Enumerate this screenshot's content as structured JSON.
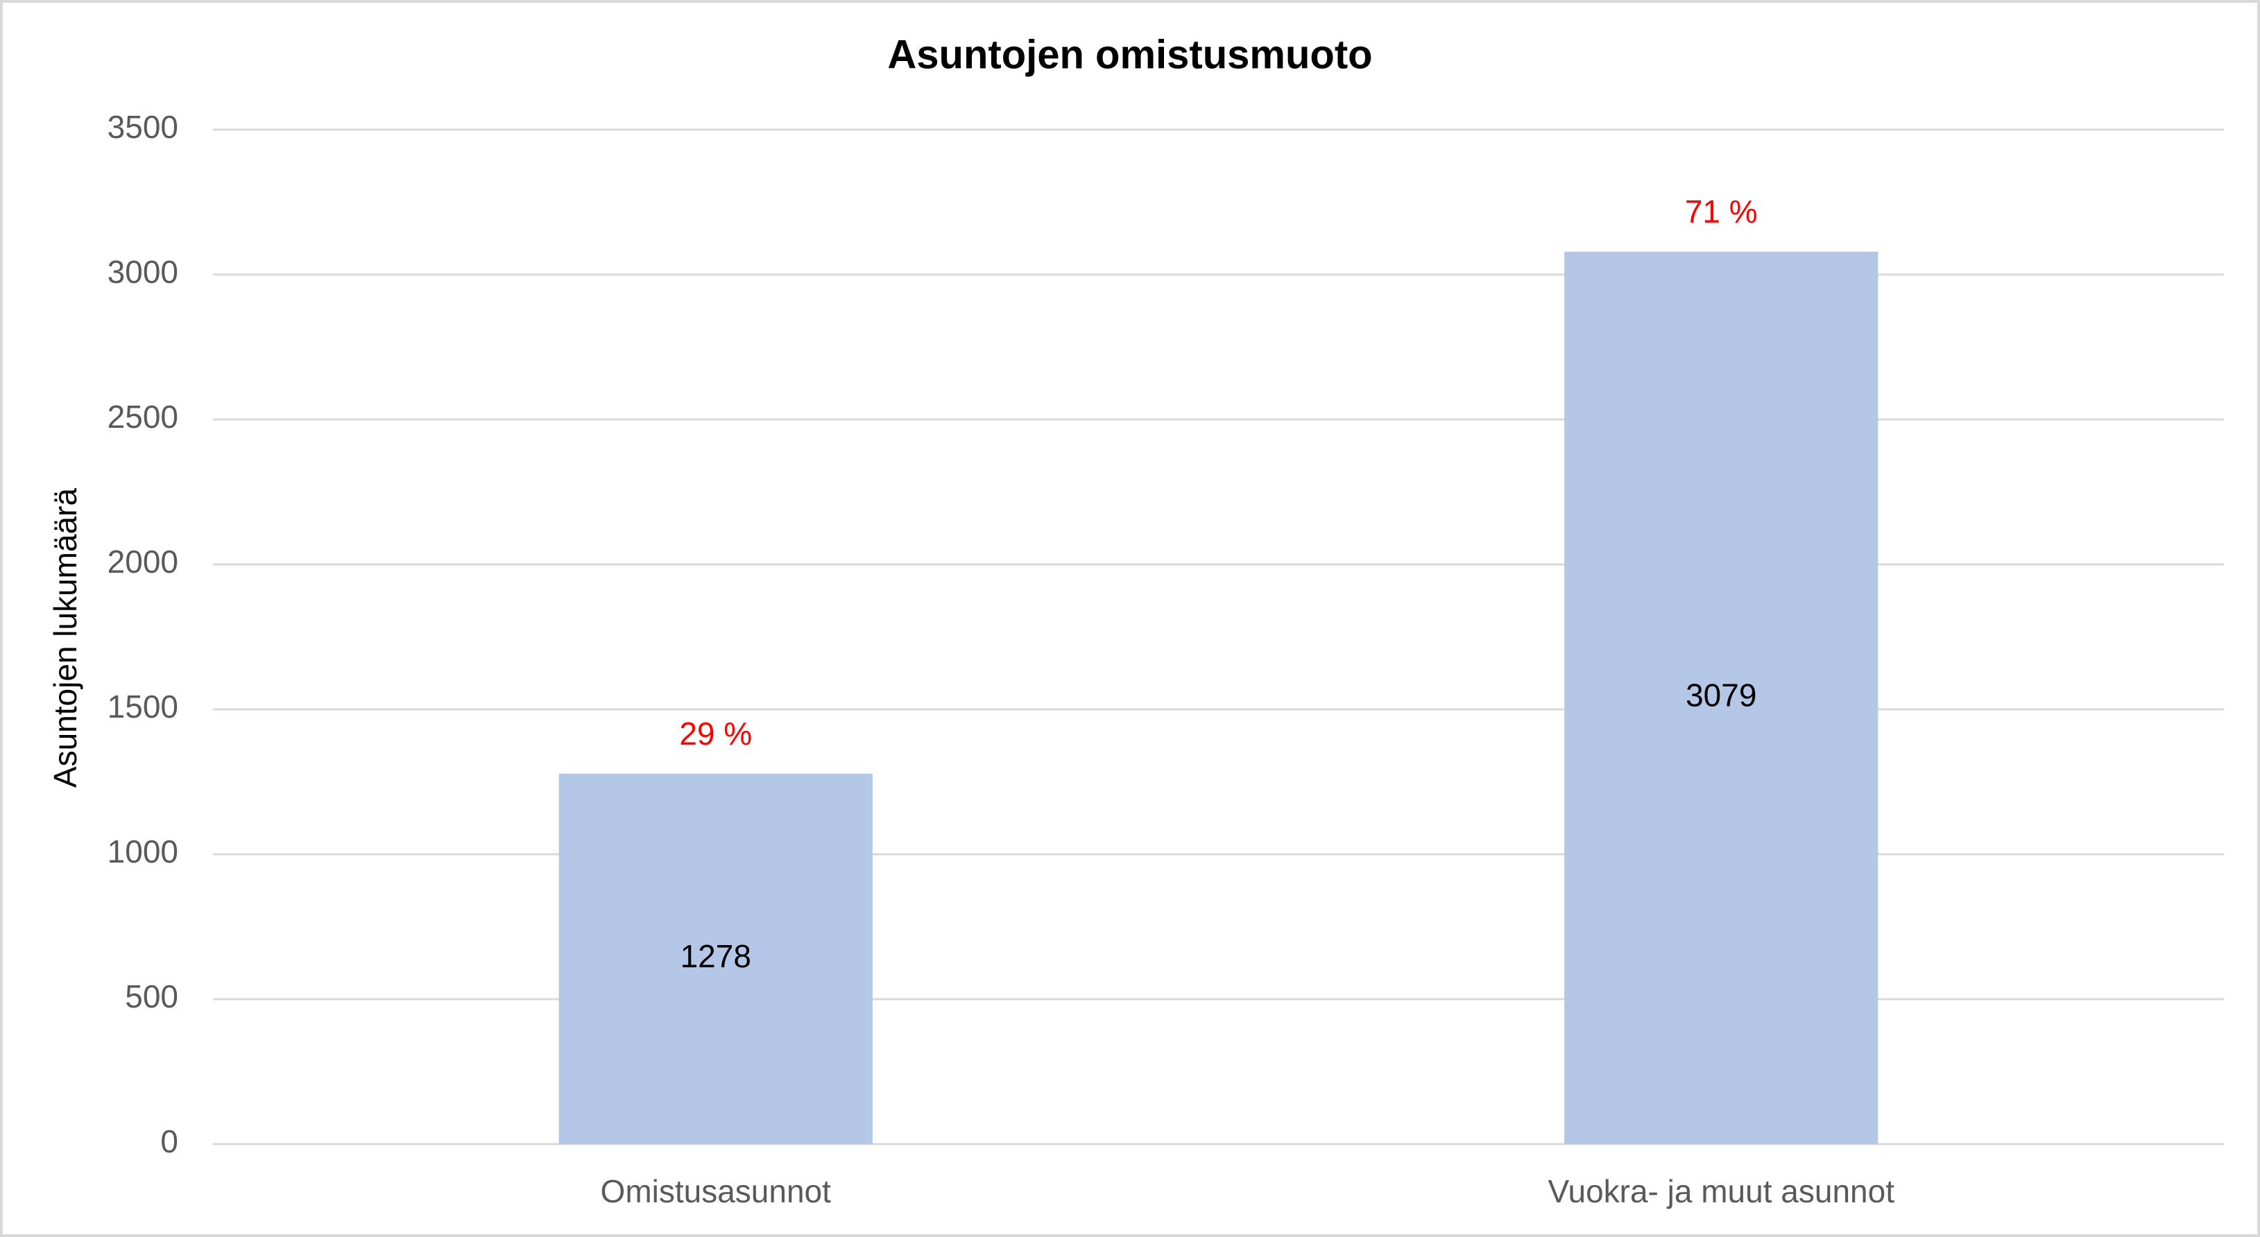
{
  "chart_data": {
    "type": "bar",
    "title": "Asuntojen omistusmuoto",
    "y_label": "Asuntojen lukumäärä",
    "categories": [
      "Omistusasunnot",
      "Vuokra- ja muut asunnot"
    ],
    "values": [
      1278,
      3079
    ],
    "annotations": [
      "29 %",
      "71 %"
    ],
    "color": "#b4c7e7",
    "ylim": [
      0,
      3500
    ],
    "yticks": [
      0,
      500,
      1000,
      1500,
      2000,
      2500,
      3000,
      3500
    ],
    "grid": true
  }
}
